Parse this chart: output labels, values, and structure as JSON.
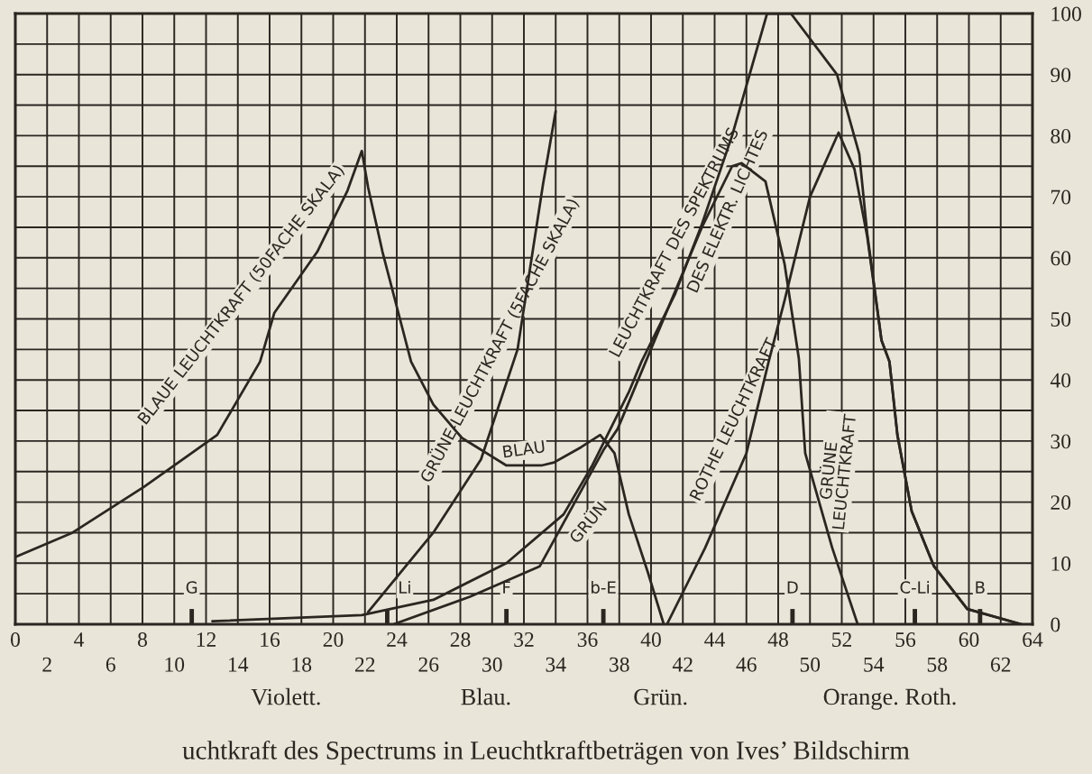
{
  "chart_data": {
    "type": "line",
    "series": [
      {
        "color": "#2b2620",
        "x": [
          0,
          3.6,
          8.1,
          12.7,
          15.4,
          16.3,
          19.0,
          20.9,
          21.8,
          22.2,
          23.1,
          24.3,
          24.9,
          26.3,
          28.1,
          30.9,
          33.1,
          33.9,
          35.6,
          36.8,
          37.7,
          38.6,
          39.8,
          40.8
        ],
        "values": [
          11,
          15,
          22.5,
          31,
          43,
          51,
          61,
          71,
          77.5,
          71.5,
          61,
          49,
          43,
          36,
          30.5,
          26,
          26,
          26.5,
          29,
          31,
          28,
          18,
          8.5,
          0
        ]
      },
      {
        "color": "#2b2620",
        "x": [
          22.2,
          26.3,
          29.3,
          31.6,
          33.2,
          34.0
        ],
        "values": [
          2,
          15,
          27,
          45,
          72,
          84
        ]
      },
      {
        "color": "#2b2620",
        "x": [
          12.4,
          21.8,
          26.3,
          30.9,
          34.5,
          36.3,
          38.6,
          39.4,
          41.5,
          43.2,
          45.1,
          47.3,
          48.8,
          51.7,
          53.1,
          53.6,
          54.5,
          55.0,
          55.5,
          56.4,
          57.8,
          59.9,
          63.3
        ],
        "values": [
          0.5,
          1.5,
          4,
          10,
          18,
          26,
          38,
          43,
          54,
          65.5,
          80,
          100,
          100,
          90,
          77,
          64,
          46.5,
          43,
          31,
          18.5,
          9.5,
          2.5,
          0
        ]
      },
      {
        "color": "#2b2620",
        "x": [
          23.8,
          28.6,
          33.0,
          37.0,
          37.9,
          43.2,
          45.1,
          45.7,
          47.2,
          48.4,
          49.3,
          49.7,
          51.4,
          53.0
        ],
        "values": [
          0,
          4.5,
          9.5,
          28.5,
          32,
          65,
          75,
          75.5,
          72.5,
          59,
          43.5,
          28,
          12.5,
          0
        ]
      },
      {
        "color": "#2b2620",
        "x": [
          41.0,
          43.4,
          46.0,
          47.4,
          48.4,
          50.0,
          51.8,
          52.8,
          53.6,
          54.5,
          55.0,
          55.5,
          56.4,
          57.8,
          59.9,
          63.3
        ],
        "values": [
          0,
          12.5,
          28,
          43,
          53,
          70,
          80.5,
          74.5,
          63.5,
          46.5,
          43,
          31,
          18.5,
          9.5,
          2.5,
          0
        ]
      }
    ],
    "xlim": [
      0,
      64
    ],
    "xticks": [
      0,
      {
        "value": 2,
        "label": null
      },
      4,
      {
        "value": 6,
        "label": null
      },
      8,
      {
        "value": 10,
        "label": null
      },
      12,
      {
        "value": 14,
        "label": null
      },
      16,
      {
        "value": 18,
        "label": null
      },
      20,
      {
        "value": 22,
        "label": null
      },
      24,
      {
        "value": 26,
        "label": null
      },
      28,
      {
        "value": 30,
        "label": null
      },
      32,
      {
        "value": 34,
        "label": null
      },
      36,
      {
        "value": 38,
        "label": null
      },
      40,
      {
        "value": 42,
        "label": null
      },
      44,
      {
        "value": 46,
        "label": null
      },
      48,
      {
        "value": 50,
        "label": null
      },
      52,
      {
        "value": 54,
        "label": null
      },
      56,
      {
        "value": 58,
        "label": null
      },
      60,
      {
        "value": 62,
        "label": null
      },
      64
    ],
    "x2lim": [
      0,
      64
    ],
    "x2ticks": [
      2,
      6,
      10,
      14,
      18,
      22,
      26,
      30,
      34,
      38,
      42,
      46,
      50,
      54,
      58,
      62
    ],
    "ref_lines": [
      {
        "axis": "x",
        "value": 11.1,
        "label": "G"
      },
      {
        "axis": "x",
        "value": 23.4,
        "label": "Li"
      },
      {
        "axis": "x",
        "value": 30.9,
        "label": "F"
      },
      {
        "axis": "x",
        "value": 37.0,
        "label": "b-E"
      },
      {
        "axis": "x",
        "value": 48.9,
        "label": "D"
      },
      {
        "axis": "x",
        "value": 56.6,
        "label": "C-Li"
      },
      {
        "axis": "x",
        "value": 60.7,
        "label": "B"
      }
    ],
    "ylim": [
      0,
      100
    ],
    "yticks": [
      0,
      {
        "value": 5,
        "label": null
      },
      10,
      {
        "value": 15,
        "label": null
      },
      20,
      {
        "value": 25,
        "label": null
      },
      30,
      {
        "value": 35,
        "label": null
      },
      40,
      {
        "value": 45,
        "label": null
      },
      50,
      {
        "value": 55,
        "label": null
      },
      60,
      {
        "value": 65,
        "label": null
      },
      70,
      {
        "value": 75,
        "label": null
      },
      80,
      {
        "value": 85,
        "label": null
      },
      90,
      {
        "value": 95,
        "label": null
      },
      100
    ],
    "grid": true,
    "legend": false,
    "marker": "none",
    "line_style": "solid",
    "annotations": [
      {
        "text": "BLAUE LEUCHTKRAFT (50FACHE SKALA)",
        "x": 16.3,
        "y": 51
      },
      {
        "text": "GRÜNE-LEUCHTKRAFT (5FACHE SKALA)",
        "x": 31.6,
        "y": 45
      },
      {
        "text": "LEUCHTKRAFT DES SPEKTRUMS",
        "x": 42.6,
        "y": 61
      },
      {
        "text": "DES ELEKTR. LICHTES",
        "x": 43.6,
        "y": 69
      },
      {
        "text": "BLAU",
        "x": 32,
        "y": 26
      },
      {
        "text": "GRÜN",
        "x": 35,
        "y": 19
      },
      {
        "text": "ROTHE LEUCHTKRAFT",
        "x": 46.5,
        "y": 32
      },
      {
        "text": "GRÜNE\nLEUCHTKRAFT",
        "x": 50,
        "y": 25
      },
      "Violett.",
      "Blau.",
      "Grün.",
      "Orange. Roth.",
      "uchtkraft des Spectrums in Leuchtkraftbeträgen von Ives’ Bildschirm"
    ]
  }
}
